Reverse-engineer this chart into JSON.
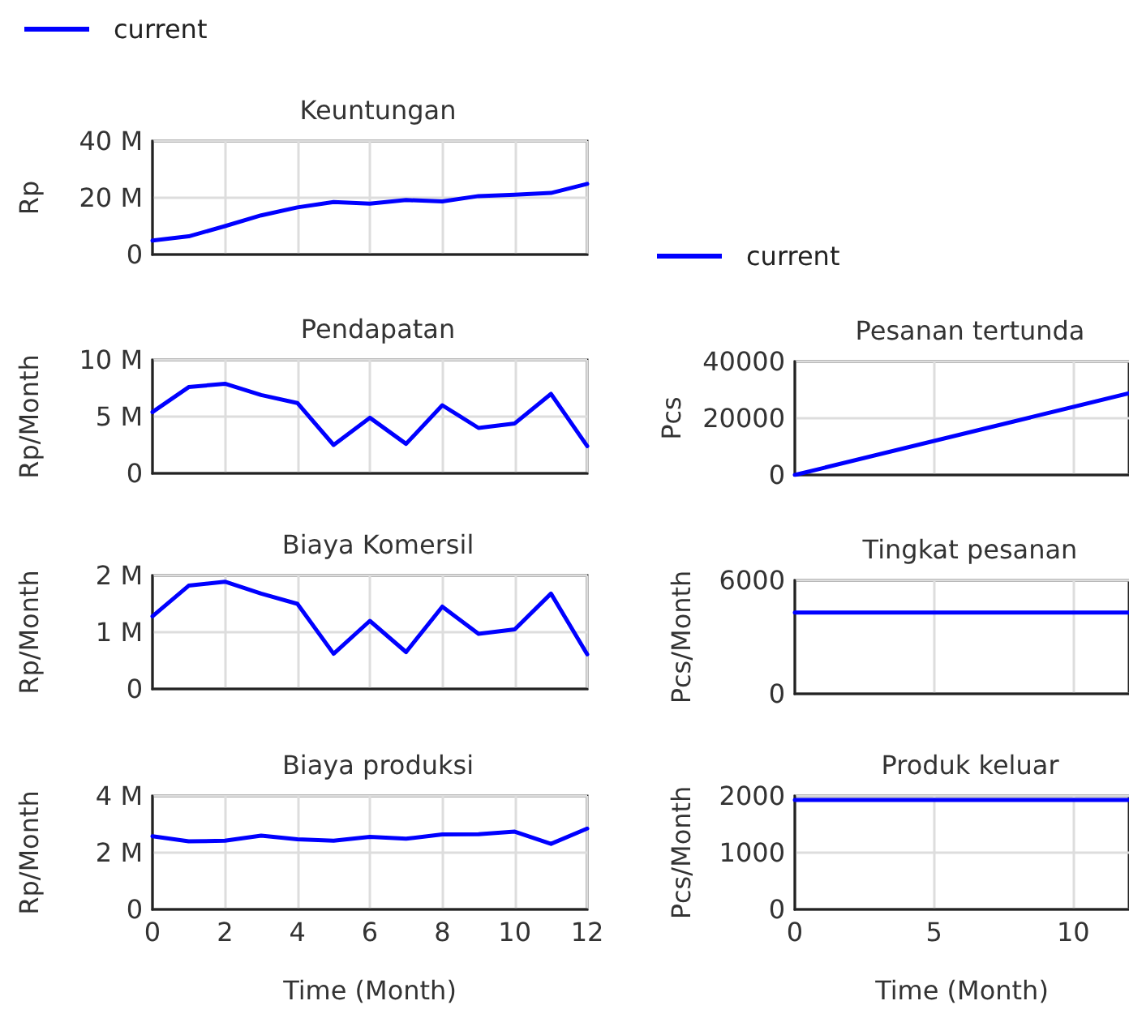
{
  "chart_data": [
    {
      "type": "line",
      "title": "Keuntungan",
      "ylabel": "Rp",
      "x": [
        0,
        1,
        2,
        3,
        4,
        5,
        6,
        7,
        8,
        9,
        10,
        11,
        12
      ],
      "xlim": [
        0,
        12
      ],
      "xticks": [
        0,
        2,
        4,
        6,
        8,
        10,
        12
      ],
      "ylim": [
        0,
        40000000
      ],
      "yticks": [
        0,
        {
          "value": 20000000,
          "label": "20 M"
        },
        {
          "value": 40000000,
          "label": "40 M"
        }
      ],
      "grid": true,
      "legend": "top left",
      "tick_labels": "y",
      "series": [
        {
          "name": "current",
          "color": "#0000ff",
          "values": [
            4900000,
            6400000,
            10000000,
            13800000,
            16600000,
            18500000,
            17900000,
            19200000,
            18700000,
            20600000,
            21100000,
            21700000,
            24900000
          ]
        }
      ]
    },
    {
      "type": "line",
      "title": "Pendapatan",
      "ylabel": "Rp/Month",
      "x": [
        0,
        1,
        2,
        3,
        4,
        5,
        6,
        7,
        8,
        9,
        10,
        11,
        12
      ],
      "xlim": [
        0,
        12
      ],
      "xticks": [
        0,
        2,
        4,
        6,
        8,
        10,
        12
      ],
      "ylim": [
        0,
        10000000
      ],
      "yticks": [
        0,
        {
          "value": 5000000,
          "label": "5 M"
        },
        {
          "value": 10000000,
          "label": "10 M"
        }
      ],
      "grid": true,
      "tick_labels": "y",
      "series": [
        {
          "color": "#0000ff",
          "values": [
            5400000,
            7600000,
            7900000,
            6900000,
            6200000,
            2500000,
            4900000,
            2600000,
            6000000,
            4000000,
            4400000,
            7000000,
            2400000
          ]
        }
      ]
    },
    {
      "type": "line",
      "title": "Biaya Komersil",
      "ylabel": "Rp/Month",
      "x": [
        0,
        1,
        2,
        3,
        4,
        5,
        6,
        7,
        8,
        9,
        10,
        11,
        12
      ],
      "xlim": [
        0,
        12
      ],
      "xticks": [
        0,
        2,
        4,
        6,
        8,
        10,
        12
      ],
      "ylim": [
        0,
        2000000
      ],
      "yticks": [
        0,
        {
          "value": 1000000,
          "label": "1 M"
        },
        {
          "value": 2000000,
          "label": "2 M"
        }
      ],
      "grid": true,
      "tick_labels": "y",
      "series": [
        {
          "color": "#0000ff",
          "values": [
            1280000,
            1820000,
            1890000,
            1680000,
            1500000,
            620000,
            1200000,
            650000,
            1450000,
            970000,
            1050000,
            1680000,
            610000
          ]
        }
      ]
    },
    {
      "type": "line",
      "title": "Biaya produksi",
      "ylabel": "Rp/Month",
      "xlabel": "Time (Month)",
      "x": [
        0,
        1,
        2,
        3,
        4,
        5,
        6,
        7,
        8,
        9,
        10,
        11,
        12
      ],
      "xlim": [
        0,
        12
      ],
      "xticks": [
        0,
        2,
        4,
        6,
        8,
        10,
        12
      ],
      "ylim": [
        0,
        4000000
      ],
      "yticks": [
        0,
        {
          "value": 2000000,
          "label": "2 M"
        },
        {
          "value": 4000000,
          "label": "4 M"
        }
      ],
      "grid": true,
      "series": [
        {
          "color": "#0000ff",
          "values": [
            2580000,
            2400000,
            2420000,
            2600000,
            2470000,
            2420000,
            2560000,
            2490000,
            2640000,
            2650000,
            2740000,
            2310000,
            2850000
          ]
        }
      ]
    },
    {
      "type": "line",
      "title": "Pesanan tertunda",
      "ylabel": "Pcs",
      "x": [
        0,
        12
      ],
      "xlim": [
        0,
        12
      ],
      "xticks": [
        0,
        5,
        10
      ],
      "ylim": [
        0,
        40000
      ],
      "yticks": [
        0,
        20000,
        40000
      ],
      "grid": true,
      "legend": "top left",
      "tick_labels": "y",
      "series": [
        {
          "name": "current",
          "color": "#0000ff",
          "values": [
            0,
            28800
          ]
        }
      ]
    },
    {
      "type": "line",
      "title": "Tingkat pesanan",
      "ylabel": "Pcs/Month",
      "x": [
        0,
        12
      ],
      "xlim": [
        0,
        12
      ],
      "xticks": [
        0,
        5,
        10
      ],
      "ylim": [
        0,
        6000
      ],
      "yticks": [
        0,
        6000
      ],
      "grid": true,
      "tick_labels": "y",
      "series": [
        {
          "color": "#0000ff",
          "values": [
            4300,
            4300
          ]
        }
      ]
    },
    {
      "type": "line",
      "title": "Produk keluar",
      "ylabel": "Pcs/Month",
      "xlabel": "Time (Month)",
      "x": [
        0,
        12
      ],
      "xlim": [
        0,
        12
      ],
      "xticks": [
        0,
        5,
        10
      ],
      "ylim": [
        0,
        2000
      ],
      "yticks": [
        0,
        1000,
        2000
      ],
      "grid": true,
      "series": [
        {
          "color": "#0000ff",
          "values": [
            1930,
            1930
          ]
        }
      ]
    }
  ]
}
